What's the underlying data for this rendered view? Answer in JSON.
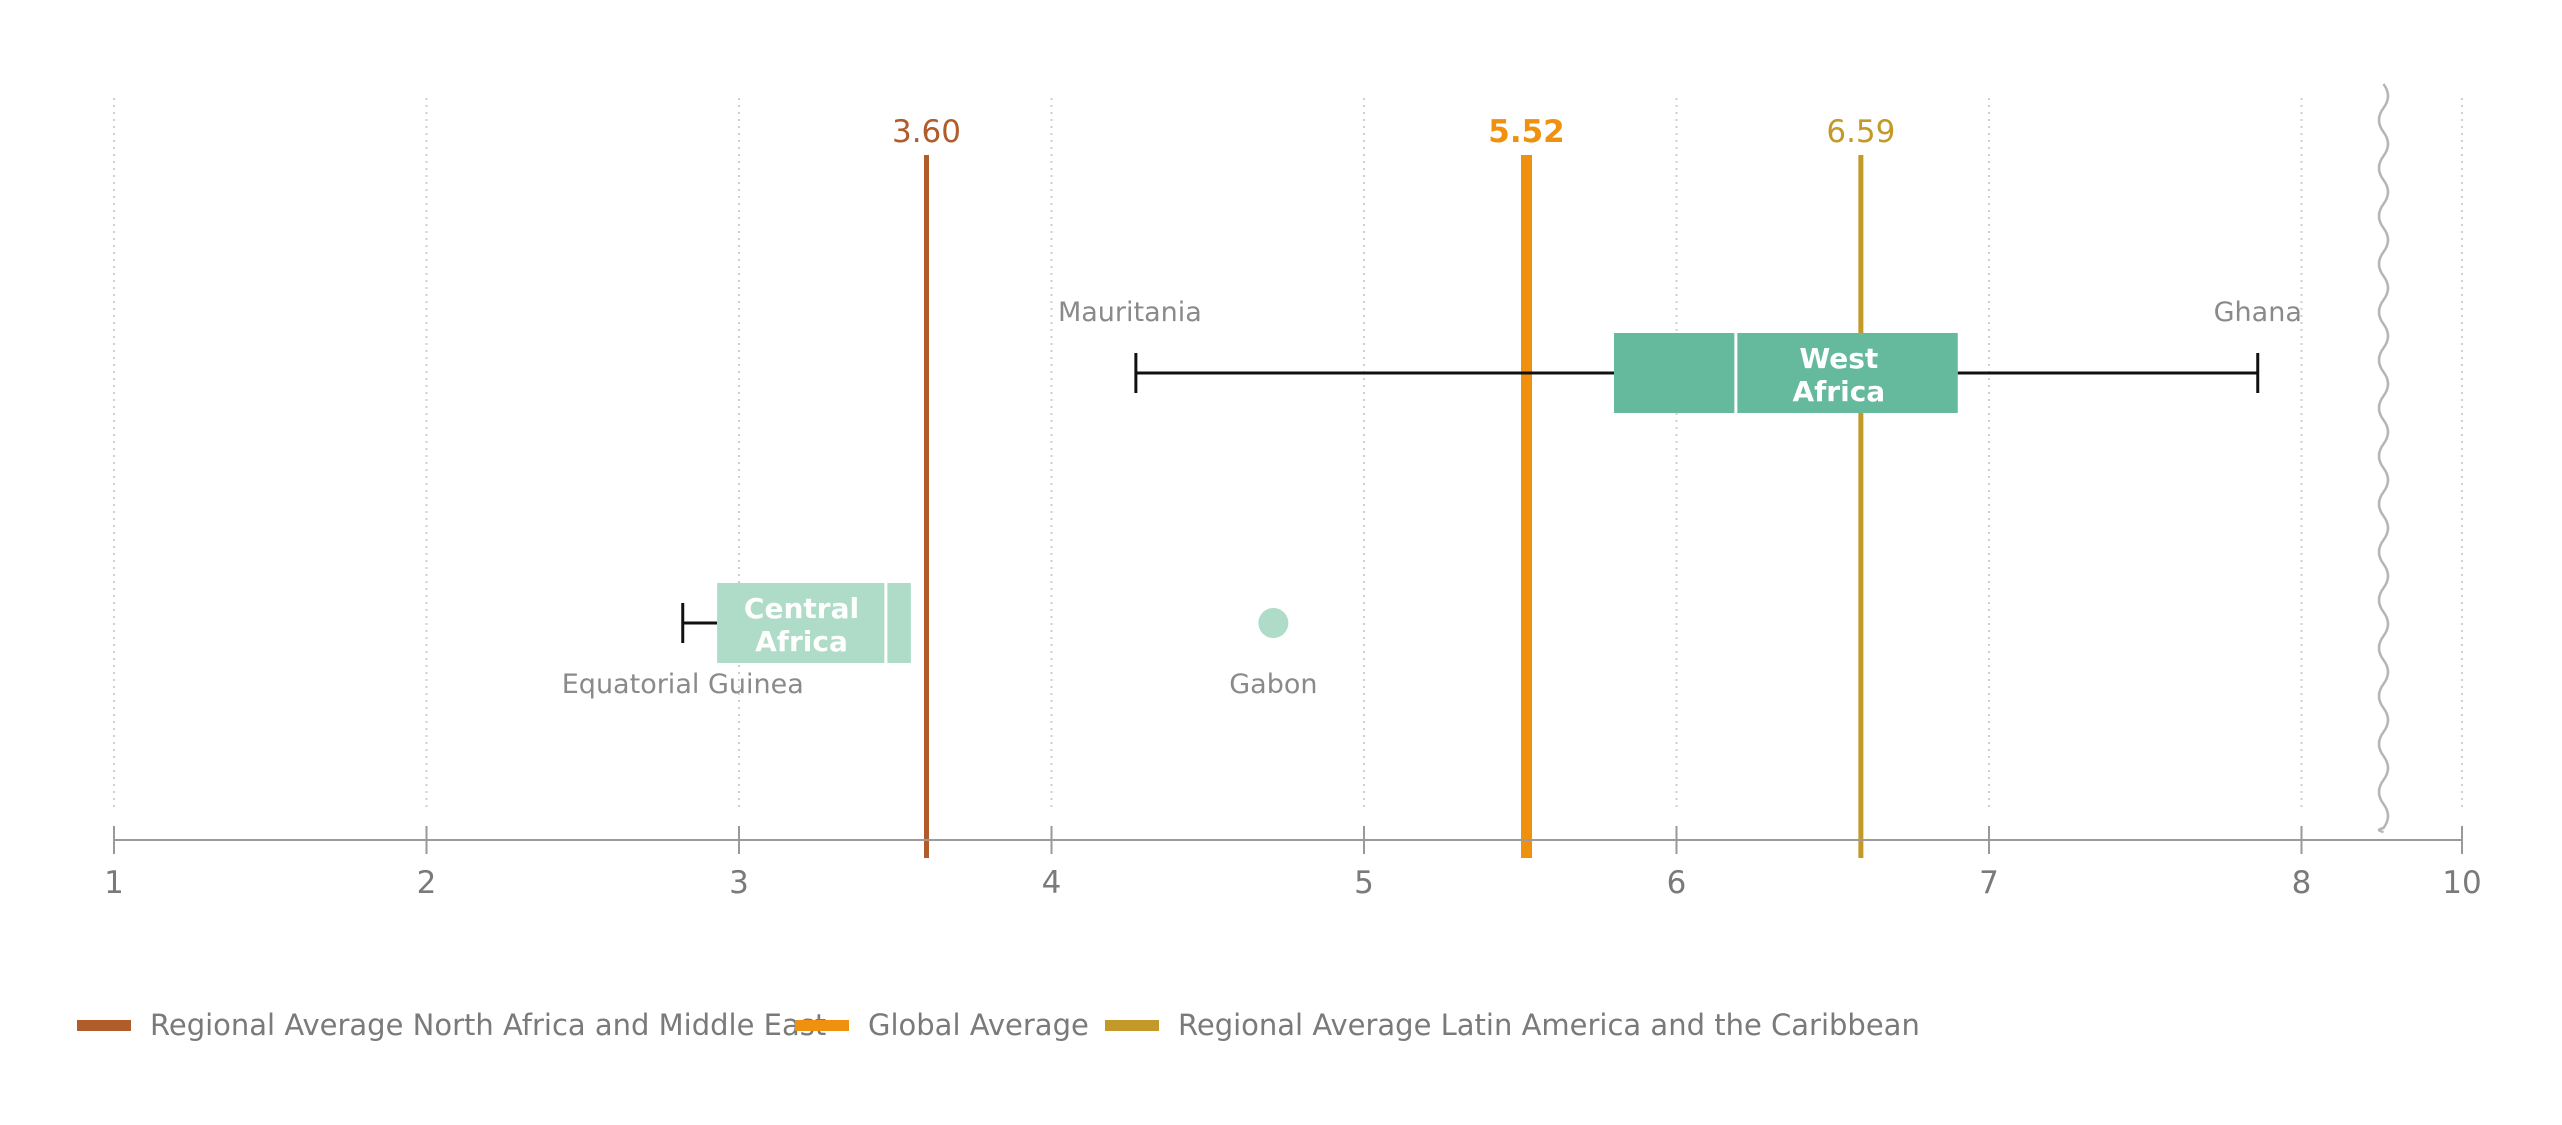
{
  "chart_data": {
    "type": "boxplot",
    "x_ticks": [
      "1",
      "2",
      "3",
      "4",
      "5",
      "6",
      "7",
      "8",
      "10"
    ],
    "x_tick_values": [
      1,
      2,
      3,
      4,
      5,
      6,
      7,
      8,
      10
    ],
    "axis_break_between": [
      8,
      10
    ],
    "grid": true,
    "reference_lines": [
      {
        "name": "Regional Average North Africa and Middle East",
        "value": 3.6,
        "label": "3.60",
        "color": "#b15c2b",
        "bold": false
      },
      {
        "name": "Global Average",
        "value": 5.52,
        "label": "5.52",
        "color": "#f0900f",
        "bold": true
      },
      {
        "name": "Regional Average Latin America and the Caribbean",
        "value": 6.59,
        "label": "6.59",
        "color": "#c39a2a",
        "bold": false
      }
    ],
    "boxes": [
      {
        "label_line1": "West",
        "label_line2": "Africa",
        "min": 4.27,
        "q1": 5.8,
        "median": 6.19,
        "q3": 6.9,
        "max": 7.86,
        "min_label": "Mauritania",
        "max_label": "Ghana",
        "color": "#65b99d"
      },
      {
        "label_line1": "Central",
        "label_line2": "Africa",
        "min": 2.82,
        "q1": 2.93,
        "median": 3.47,
        "q3": 3.55,
        "min_label": "Equatorial Guinea",
        "outlier": {
          "value": 4.71,
          "label": "Gabon"
        },
        "color": "#afdbc9"
      }
    ],
    "legend_position": "bottom-left"
  }
}
